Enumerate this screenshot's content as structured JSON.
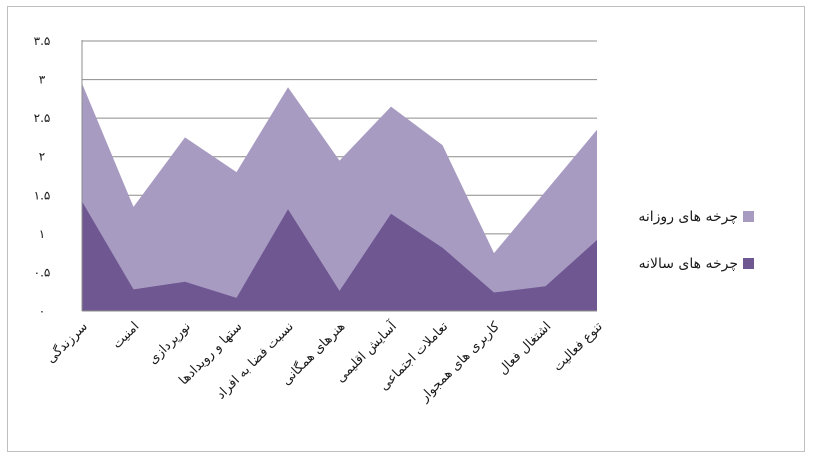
{
  "chart_data": {
    "type": "area",
    "stacked": false,
    "categories": [
      "سرزندگی",
      "امنیت",
      "نورپردازی",
      "ستها و رویدادها",
      "نسبت فضا به افراد",
      "هنرهای همگانی",
      "آسایش اقلیمی",
      "تعاملات اجتماعی",
      "کاربری های همجوار",
      "اشتغال فعال",
      "تنوع فعالیت"
    ],
    "y_tick_labels": [
      "۰",
      "۰.۵",
      "۱",
      "۱.۵",
      "۲",
      "۲.۵",
      "۳",
      "۳.۵"
    ],
    "ylim": [
      0,
      3.5
    ],
    "grid": true,
    "legend_position": "right",
    "series": [
      {
        "name": "چرخه های روزانه",
        "color": "#a89bc2",
        "values": [
          2.95,
          1.35,
          2.25,
          1.8,
          2.9,
          1.95,
          2.65,
          2.15,
          0.75,
          1.55,
          2.35
        ]
      },
      {
        "name": "چرخه های سالانه",
        "color": "#6f5792",
        "values": [
          1.42,
          0.28,
          0.38,
          0.17,
          1.32,
          0.26,
          1.26,
          0.82,
          0.24,
          0.32,
          0.92
        ]
      }
    ]
  }
}
